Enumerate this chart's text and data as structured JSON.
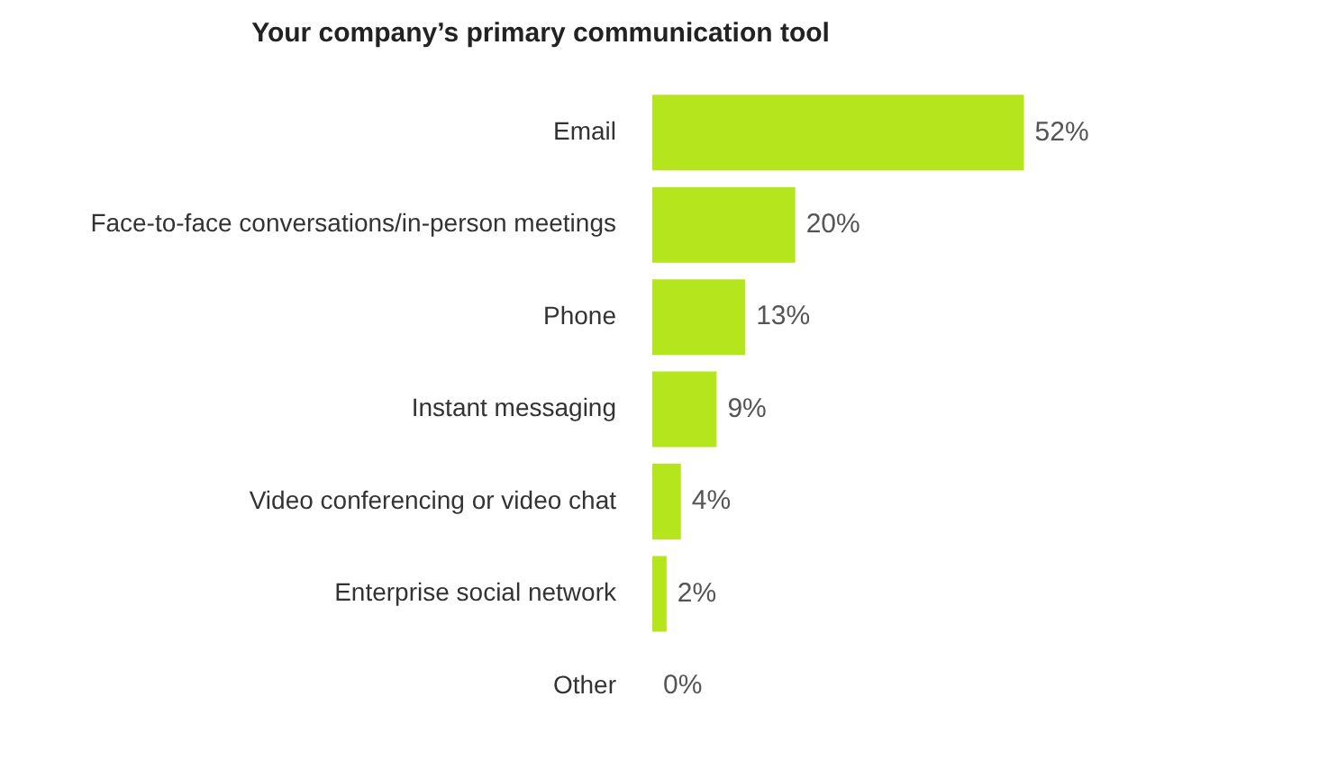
{
  "chart_data": {
    "type": "bar",
    "orientation": "horizontal",
    "title": "Your company’s primary communication tool",
    "categories": [
      "Email",
      "Face-to-face conversations/in-person meetings",
      "Phone",
      "Instant messaging",
      "Video conferencing or video chat",
      "Enterprise social network",
      "Other"
    ],
    "values": [
      52,
      20,
      13,
      9,
      4,
      2,
      0
    ],
    "value_labels": [
      "52%",
      "20%",
      "13%",
      "9%",
      "4%",
      "2%",
      "0%"
    ],
    "color": "#b5e61d",
    "tick_labels": "y",
    "legend": false
  }
}
